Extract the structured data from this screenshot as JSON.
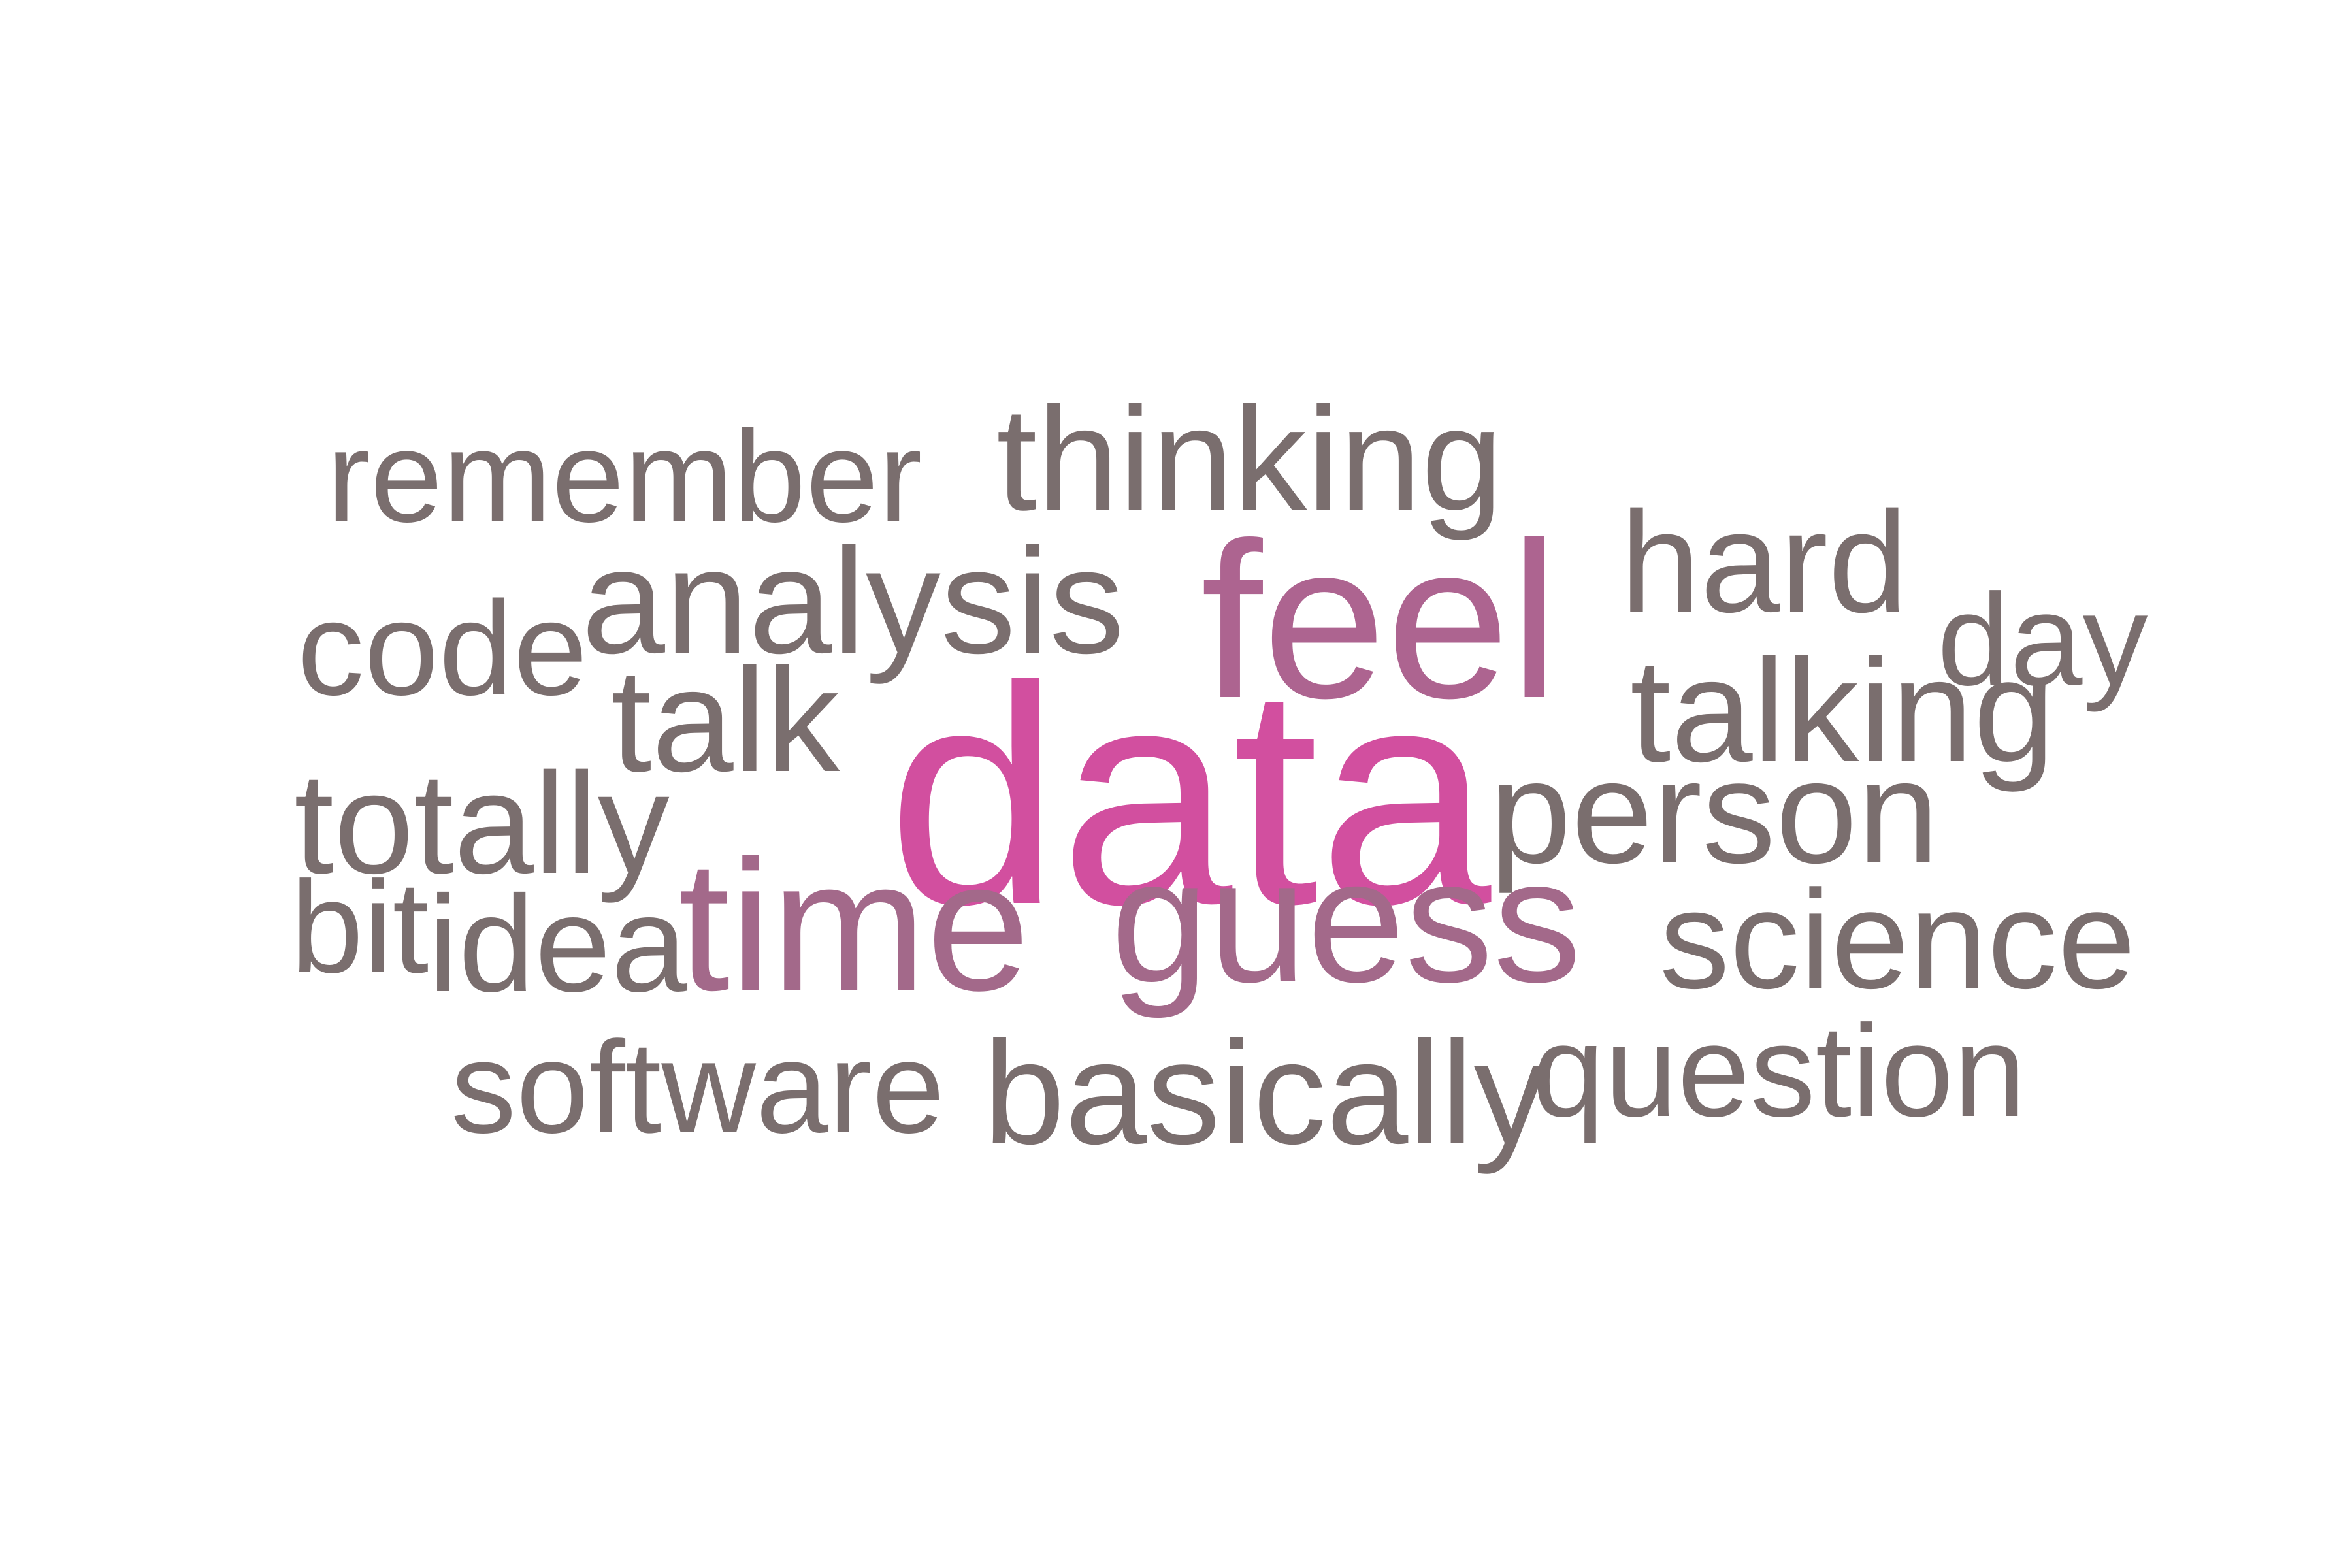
{
  "words": {
    "data": "data",
    "feel": "feel",
    "time": "time",
    "guess": "guess",
    "analysis": "analysis",
    "thinking": "thinking",
    "remember": "remember",
    "hard": "hard",
    "day": "day",
    "code": "code",
    "talk": "talk",
    "talking": "talking",
    "totally": "totally",
    "person": "person",
    "bit": "bit",
    "idea": "idea",
    "science": "science",
    "software": "software",
    "basically": "basically",
    "question": "question"
  },
  "colors": {
    "default": "#7a6e6e",
    "highlight_strong": "#d24f9f",
    "highlight_medium": "#ad6490",
    "highlight_soft": "#a3698a"
  }
}
